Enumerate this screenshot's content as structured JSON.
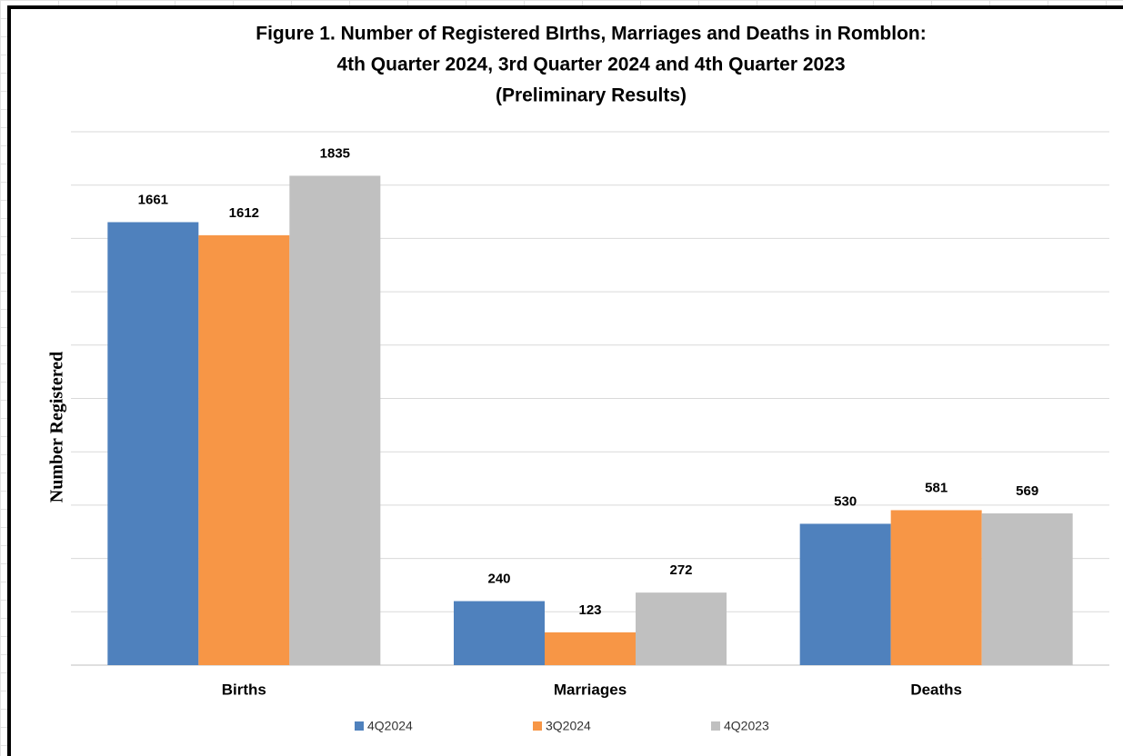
{
  "chart_data": {
    "type": "bar",
    "title": [
      "Figure 1. Number of Registered BIrths, Marriages and Deaths in Romblon:",
      "4th Quarter 2024, 3rd Quarter 2024 and 4th Quarter 2023",
      "(Preliminary Results)"
    ],
    "y_label": "Number Registered",
    "categories": [
      "Births",
      "Marriages",
      "Deaths"
    ],
    "series": [
      {
        "name": "4Q2024",
        "color": "#4f81bd",
        "values": [
          1661,
          240,
          530
        ]
      },
      {
        "name": "3Q2024",
        "color": "#f79646",
        "values": [
          1612,
          123,
          581
        ]
      },
      {
        "name": "4Q2023",
        "color": "#c0c0c0",
        "values": [
          1835,
          272,
          569
        ]
      }
    ],
    "ylim": [
      0,
      2000
    ],
    "yticks": [
      0,
      200,
      400,
      600,
      800,
      1000,
      1200,
      1400,
      1600,
      1800,
      2000
    ],
    "grid": true,
    "legend": "bottom"
  }
}
